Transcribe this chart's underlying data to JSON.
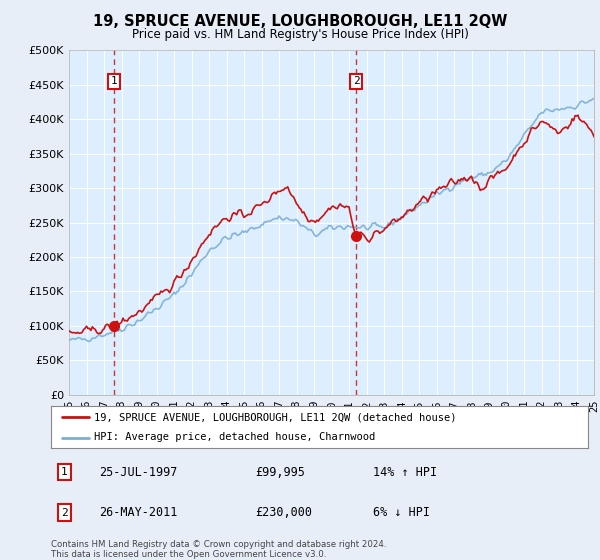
{
  "title": "19, SPRUCE AVENUE, LOUGHBOROUGH, LE11 2QW",
  "subtitle": "Price paid vs. HM Land Registry's House Price Index (HPI)",
  "figure_bg_color": "#e8eef8",
  "plot_bg_color": "#e0e8f8",
  "ylabel_ticks": [
    "£0",
    "£50K",
    "£100K",
    "£150K",
    "£200K",
    "£250K",
    "£300K",
    "£350K",
    "£400K",
    "£450K",
    "£500K"
  ],
  "ytick_vals": [
    0,
    50000,
    100000,
    150000,
    200000,
    250000,
    300000,
    350000,
    400000,
    450000,
    500000
  ],
  "x_start_year": 1995,
  "x_end_year": 2025,
  "hpi_line_color": "#7bafd4",
  "price_line_color": "#cc1111",
  "sale1_year": 1997.57,
  "sale1_price": 99995,
  "sale2_year": 2011.4,
  "sale2_price": 230000,
  "legend_entries": [
    "19, SPRUCE AVENUE, LOUGHBOROUGH, LE11 2QW (detached house)",
    "HPI: Average price, detached house, Charnwood"
  ],
  "table_data": [
    {
      "num": "1",
      "date": "25-JUL-1997",
      "price": "£99,995",
      "change": "14% ↑ HPI"
    },
    {
      "num": "2",
      "date": "26-MAY-2011",
      "price": "£230,000",
      "change": "6% ↓ HPI"
    }
  ],
  "footnote": "Contains HM Land Registry data © Crown copyright and database right 2024.\nThis data is licensed under the Open Government Licence v3.0."
}
